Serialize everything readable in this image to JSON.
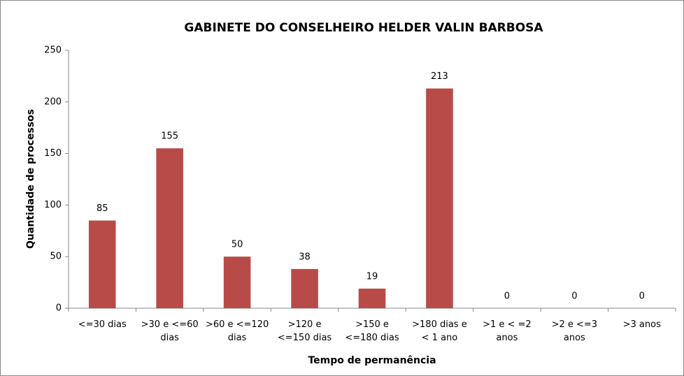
{
  "chart_data": {
    "type": "bar",
    "title": "GABINETE DO CONSELHEIRO HELDER VALIN BARBOSA",
    "x_label": "Tempo de permanência",
    "y_label": "Quantidade de processos",
    "categories": [
      "<=30 dias",
      ">30 e <=60 dias",
      ">60 e <=120 dias",
      ">120 e <=150 dias",
      ">150 e <=180 dias",
      ">180 dias e < 1 ano",
      ">1 e < =2 anos",
      ">2 e <=3 anos",
      ">3 anos"
    ],
    "values": [
      85,
      155,
      50,
      38,
      19,
      213,
      0,
      0,
      0
    ],
    "color": "#b84b47",
    "ylim": [
      0,
      250
    ],
    "yticks": [
      0,
      50,
      100,
      150,
      200,
      250
    ],
    "grid": false
  }
}
